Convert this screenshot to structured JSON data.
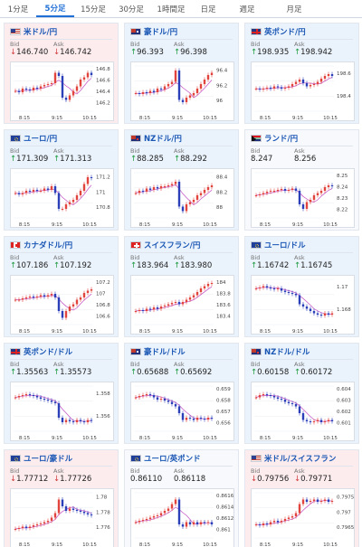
{
  "tabs": [
    "1分足",
    "5分足",
    "15分足",
    "30分足",
    "1時間足",
    "日足",
    "週足",
    "月足"
  ],
  "active_tab": "5分足",
  "quote_labels": {
    "bid": "Bid",
    "ask": "Ask"
  },
  "colors": {
    "up": "#1d9a3e",
    "down": "#d03a3a",
    "candle_up": "#e0443c",
    "candle_down": "#2a3fb8",
    "ma": "#c34fc3"
  },
  "cards": [
    {
      "pair": "米ドル/円",
      "flag": "us",
      "direction": "down",
      "bid": "146.740",
      "ask": "146.742",
      "y_ticks": [
        "146.8",
        "146.6",
        "146.4",
        "146.2"
      ],
      "x_ticks": [
        "8:15",
        "9:15",
        "10:15"
      ]
    },
    {
      "pair": "豪ドル/円",
      "flag": "au",
      "direction": "up",
      "bid": "96.393",
      "ask": "96.398",
      "y_ticks": [
        "96.4",
        "96.2",
        "96"
      ],
      "x_ticks": [
        "8:15",
        "9:15",
        "10:15"
      ]
    },
    {
      "pair": "英ポンド/円",
      "flag": "gb",
      "direction": "up",
      "bid": "198.935",
      "ask": "198.942",
      "y_ticks": [
        "198.6",
        "198.4"
      ],
      "x_ticks": [
        "8:15",
        "9:15",
        "10:15"
      ]
    },
    {
      "pair": "ユーロ/円",
      "flag": "eu",
      "direction": "up",
      "bid": "171.309",
      "ask": "171.313",
      "y_ticks": [
        "171.2",
        "171",
        "170.8"
      ],
      "x_ticks": [
        "8:15",
        "9:15",
        "10:15"
      ]
    },
    {
      "pair": "NZドル/円",
      "flag": "nz",
      "direction": "up",
      "bid": "88.285",
      "ask": "88.292",
      "y_ticks": [
        "88.4",
        "88.2",
        "88"
      ],
      "x_ticks": [
        "8:15",
        "9:15",
        "10:15"
      ]
    },
    {
      "pair": "ランド/円",
      "flag": "za",
      "direction": "flat",
      "bid": "8.247",
      "ask": "8.256",
      "y_ticks": [
        "8.25",
        "8.24",
        "8.23",
        "8.22"
      ],
      "x_ticks": [
        "8:15",
        "9:15",
        "10:15"
      ]
    },
    {
      "pair": "カナダドル/円",
      "flag": "ca",
      "direction": "up",
      "bid": "107.186",
      "ask": "107.192",
      "y_ticks": [
        "107.2",
        "107",
        "106.8",
        "106.6"
      ],
      "x_ticks": [
        "8:15",
        "9:15",
        "10:15"
      ]
    },
    {
      "pair": "スイスフラン/円",
      "flag": "ch",
      "direction": "up",
      "bid": "183.964",
      "ask": "183.980",
      "y_ticks": [
        "184",
        "183.8",
        "183.6",
        "183.4"
      ],
      "x_ticks": [
        "8:15",
        "9:15",
        "10:15"
      ]
    },
    {
      "pair": "ユーロ/ドル",
      "flag": "eu",
      "direction": "up",
      "bid": "1.16742",
      "ask": "1.16745",
      "y_ticks": [
        "1.17",
        "1.168"
      ],
      "x_ticks": [
        "8:15",
        "9:15",
        "10:15"
      ]
    },
    {
      "pair": "英ポンド/ドル",
      "flag": "gb",
      "direction": "up",
      "bid": "1.35563",
      "ask": "1.35573",
      "y_ticks": [
        "1.358",
        "1.356"
      ],
      "x_ticks": [
        "8:15",
        "9:15",
        "10:15"
      ]
    },
    {
      "pair": "豪ドル/ドル",
      "flag": "au",
      "direction": "up",
      "bid": "0.65688",
      "ask": "0.65692",
      "y_ticks": [
        "0.659",
        "0.658",
        "0.657",
        "0.656"
      ],
      "x_ticks": [
        "8:15",
        "9:15",
        "10:15"
      ]
    },
    {
      "pair": "NZドル/ドル",
      "flag": "nz",
      "direction": "up",
      "bid": "0.60158",
      "ask": "0.60172",
      "y_ticks": [
        "0.604",
        "0.603",
        "0.602",
        "0.601"
      ],
      "x_ticks": [
        "8:15",
        "9:15",
        "10:15"
      ]
    },
    {
      "pair": "ユーロ/豪ドル",
      "flag": "eu",
      "direction": "down",
      "bid": "1.77712",
      "ask": "1.77726",
      "y_ticks": [
        "1.78",
        "1.778",
        "1.776"
      ],
      "x_ticks": [
        "8:15",
        "9:15",
        "10:15"
      ]
    },
    {
      "pair": "ユーロ/英ポンド",
      "flag": "eu",
      "direction": "flat",
      "bid": "0.86110",
      "ask": "0.86118",
      "y_ticks": [
        "0.8616",
        "0.8614",
        "0.8612",
        "0.861"
      ],
      "x_ticks": [
        "8:15",
        "9:15",
        "10:15"
      ]
    },
    {
      "pair": "米ドル/スイスフラン",
      "flag": "us",
      "direction": "down",
      "bid": "0.79756",
      "ask": "0.79771",
      "y_ticks": [
        "0.7975",
        "0.797",
        "0.7965"
      ],
      "x_ticks": [
        "8:15",
        "9:15",
        "10:15"
      ]
    }
  ]
}
